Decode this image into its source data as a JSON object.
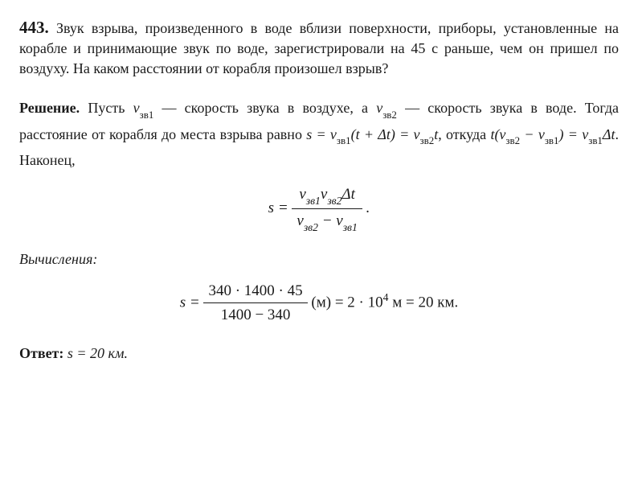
{
  "problem": {
    "number": "443.",
    "text": "Звук взрыва, произведенного в воде вблизи поверхности, приборы, установленные на корабле и принимающие звук по воде, зарегистрировали на 45 с раньше, чем он пришел по воздуху. На каком расстоянии от корабля произошел взрыв?"
  },
  "solution": {
    "label": "Решение.",
    "part1_a": "Пусть ",
    "part1_b": " — скорость звука в воздухе, а ",
    "part1_c": " — скорость звука в воде. Тогда расстояние от корабля до места взрыва равно ",
    "part1_d": ", откуда ",
    "part1_e": ". Наконец,",
    "v1": "v",
    "v1sub": "зв1",
    "v2": "v",
    "v2sub": "зв2",
    "eq_s": "s = v",
    "eq_s_mid": "(t + Δt) = v",
    "eq_s_end": "t",
    "eq_t_a": "t(v",
    "eq_t_b": " − v",
    "eq_t_c": ") = v",
    "eq_t_d": "Δt"
  },
  "formula_main": {
    "lhs": "s = ",
    "num_a": "v",
    "num_b": "v",
    "num_c": "Δt",
    "den_a": "v",
    "den_b": " − v",
    "dot": " ."
  },
  "calc_label": "Вычисления:",
  "calc_formula": {
    "lhs": "s = ",
    "num": "340 · 1400 · 45",
    "den": "1400 − 340",
    "unit": " (м) = 2 · 10",
    "exp": "4",
    "rest": " м = 20 км."
  },
  "answer": {
    "label": "Ответ:",
    "text": " s = 20 км."
  }
}
